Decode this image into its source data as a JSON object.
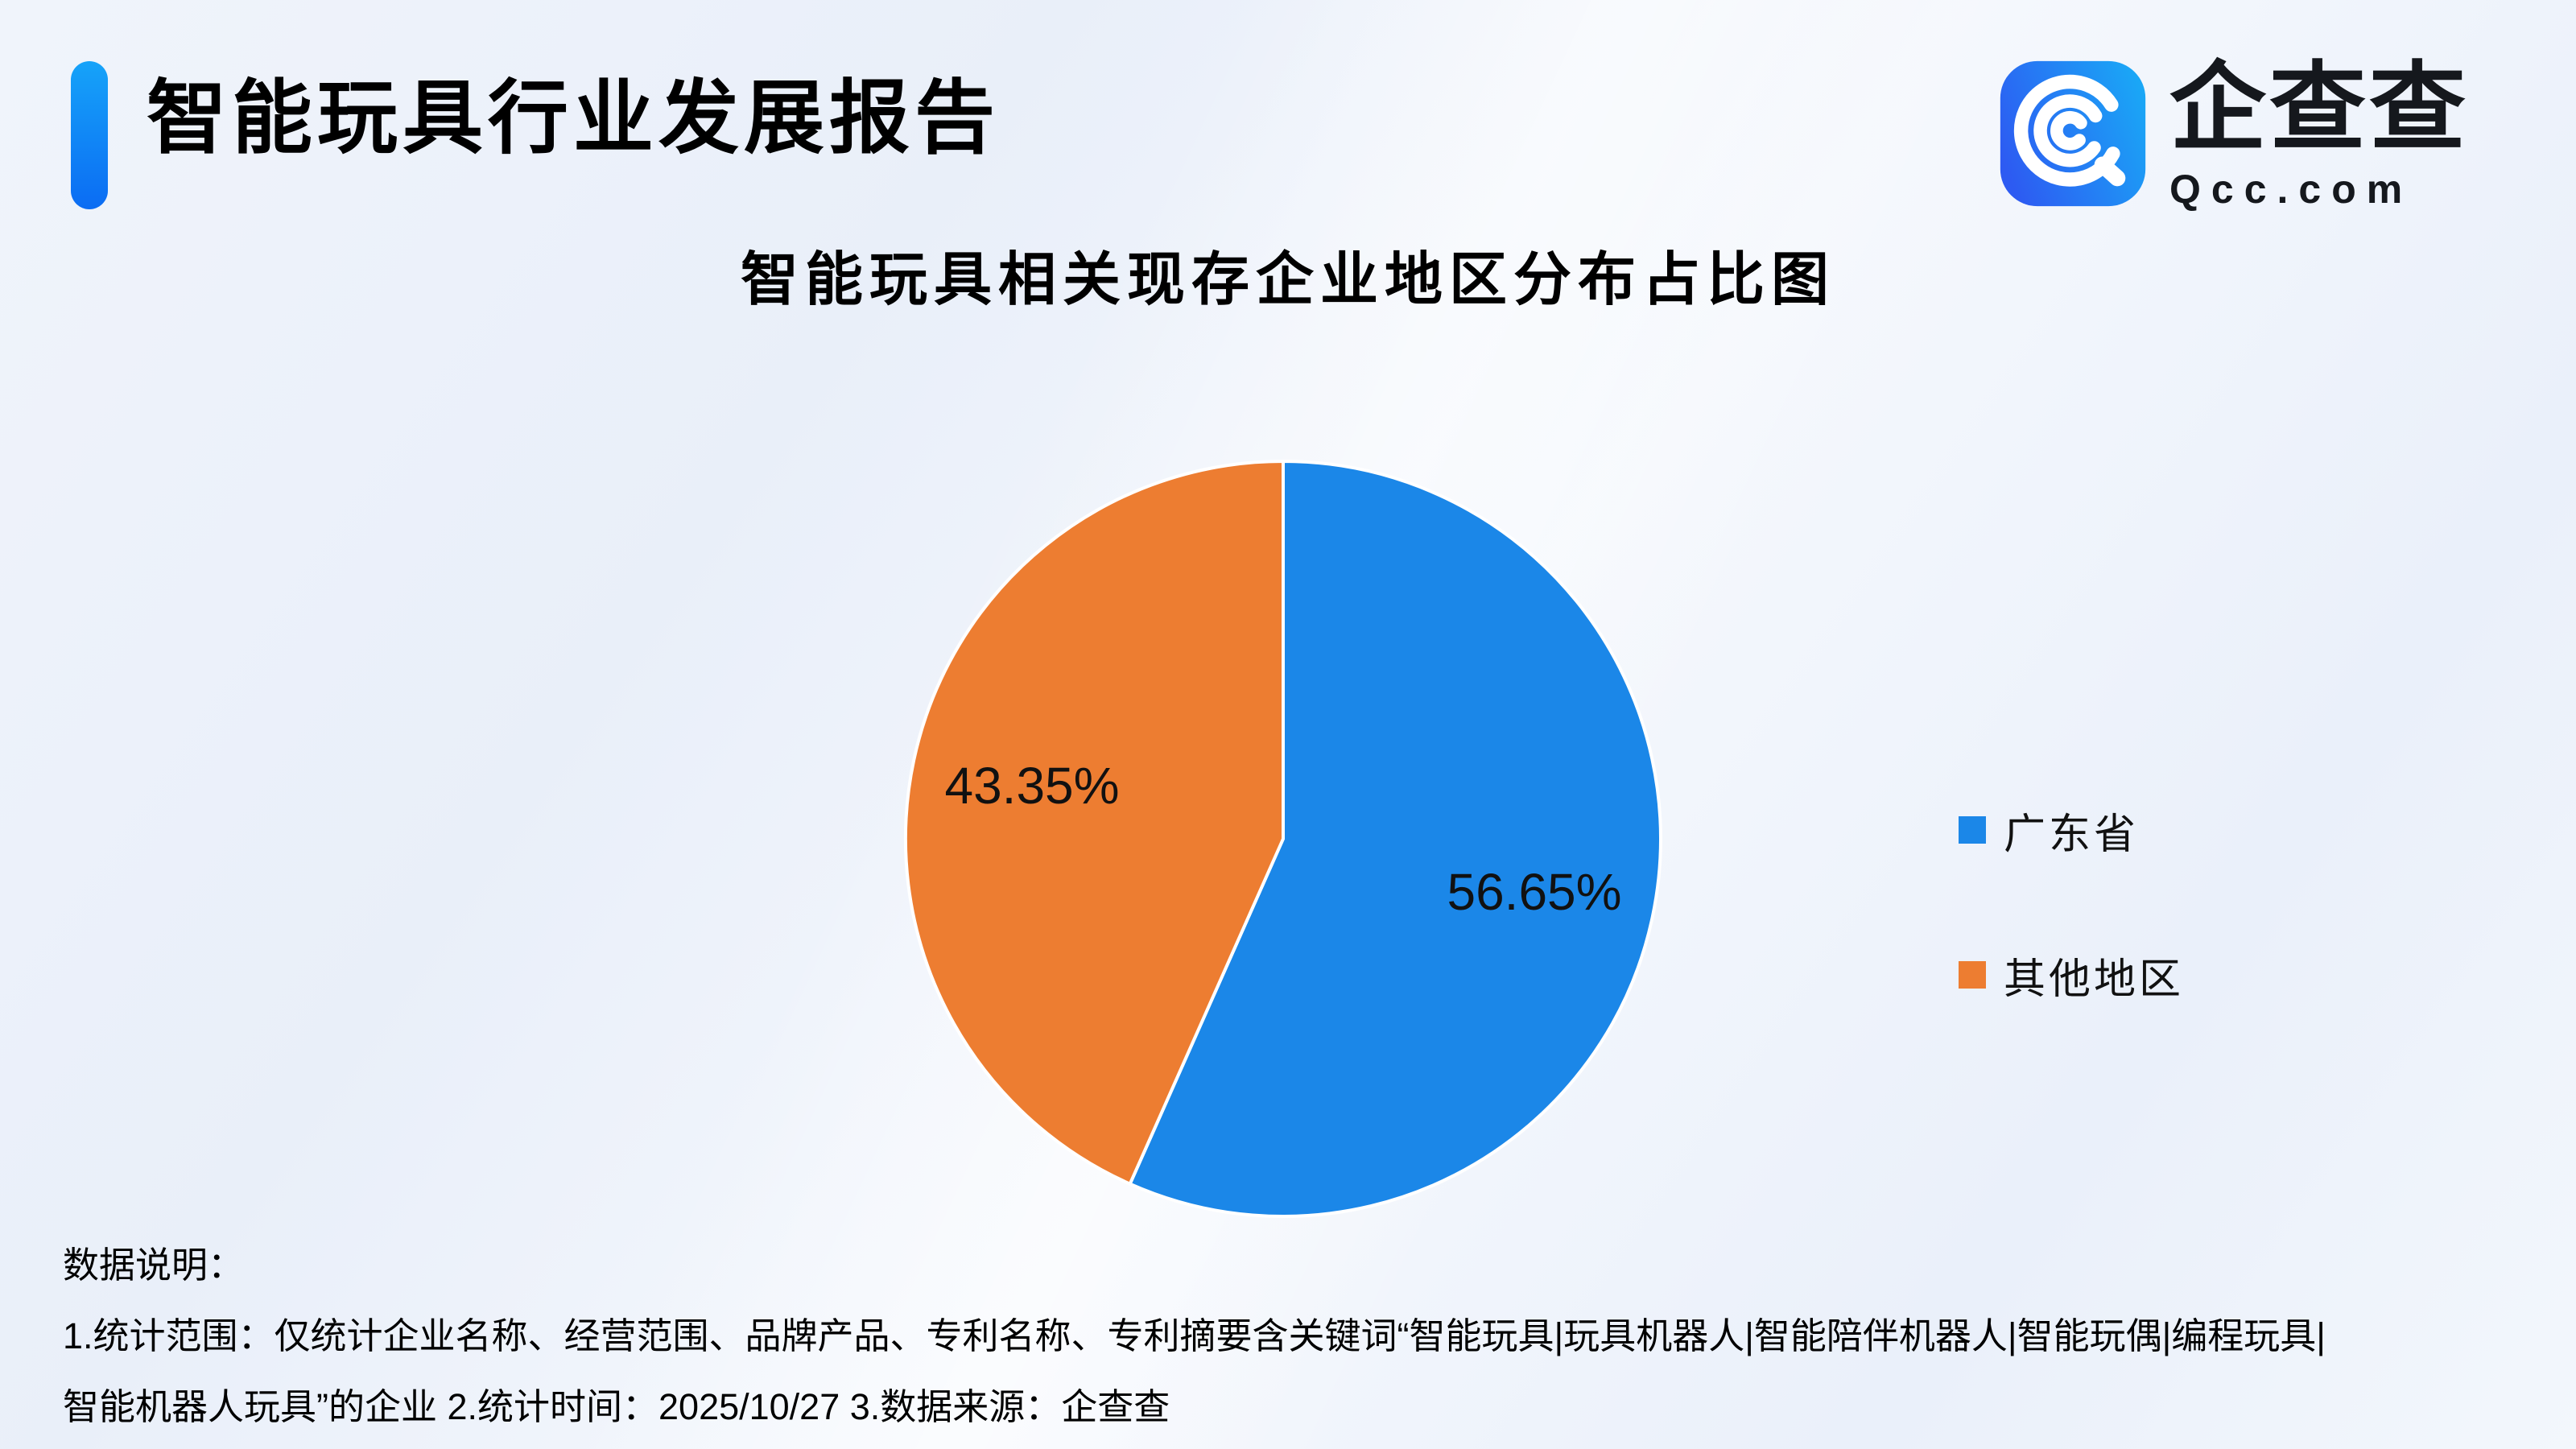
{
  "header": {
    "title": "智能玩具行业发展报告"
  },
  "logo": {
    "name": "企查查",
    "domain": "Qcc.com"
  },
  "colors": {
    "accent_bar_top": "#16a3f9",
    "accent_bar_bottom": "#0b6cf3",
    "logo_gradient_start": "#2d5bf2",
    "logo_gradient_end": "#1aa7f6",
    "pie_blue": "#1b87e8",
    "pie_orange": "#ed7d31",
    "label_text": "#111111"
  },
  "chart": {
    "title": "智能玩具相关现存企业地区分布占比图"
  },
  "chart_data": {
    "type": "pie",
    "title": "智能玩具相关现存企业地区分布占比图",
    "categories": [
      "广东省",
      "其他地区"
    ],
    "values": [
      56.65,
      43.35
    ],
    "labels": [
      "56.65%",
      "43.35%"
    ],
    "colors": [
      "#1b87e8",
      "#ed7d31"
    ],
    "unit": "%",
    "start_angle_deg": 0,
    "direction": "clockwise",
    "legend_position": "right"
  },
  "legend": {
    "items": [
      {
        "label": "广东省",
        "color": "#1b87e8"
      },
      {
        "label": "其他地区",
        "color": "#ed7d31"
      }
    ]
  },
  "footer": {
    "heading": "数据说明：",
    "line1": "1.统计范围：仅统计企业名称、经营范围、品牌产品、专利名称、专利摘要含关键词“智能玩具|玩具机器人|智能陪伴机器人|智能玩偶|编程玩具|",
    "line2": "智能机器人玩具”的企业 2.统计时间：2025/10/27 3.数据来源：企查查"
  }
}
